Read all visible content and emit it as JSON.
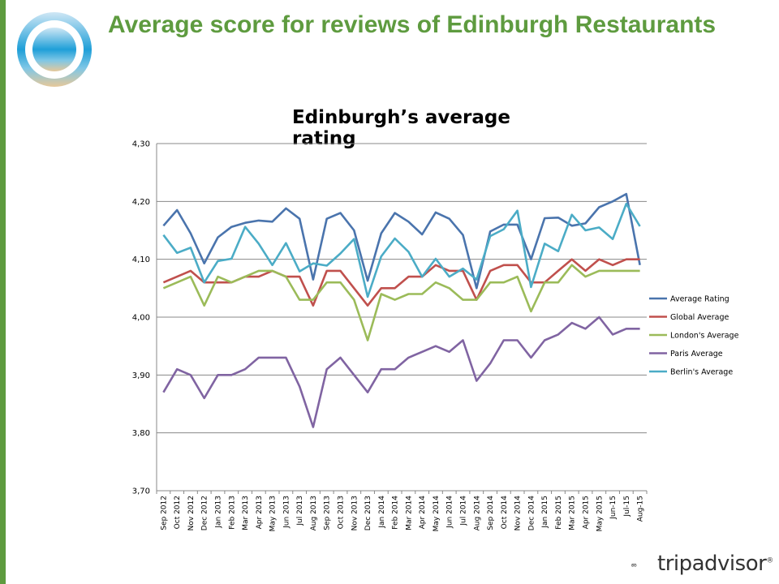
{
  "slide": {
    "title": "Average score for reviews of Edinburgh Restaurants",
    "brand_color": "#5e9b3f"
  },
  "logo": {
    "icon": "circular-brand-icon"
  },
  "footer": {
    "brand_text": "tripadvisor",
    "brand_mark": "®",
    "icon": "owl-eyes-icon"
  },
  "chart_data": {
    "type": "line",
    "title": "Edinburgh’s average rating",
    "xlabel": "",
    "ylabel": "",
    "ylim": [
      3.7,
      4.3
    ],
    "yticks": [
      "3,70",
      "3,80",
      "3,90",
      "4,00",
      "4,10",
      "4,20",
      "4,30"
    ],
    "grid": true,
    "legend_position": "right",
    "categories": [
      "Sep 2012",
      "Oct 2012",
      "Nov 2012",
      "Dec 2012",
      "Jan 2013",
      "Feb 2013",
      "Mar 2013",
      "Apr 2013",
      "May 2013",
      "Jun 2013",
      "Jul 2013",
      "Aug 2013",
      "Sep 2013",
      "Oct 2013",
      "Nov 2013",
      "Dec 2013",
      "Jan 2014",
      "Feb 2014",
      "Mar 2014",
      "Apr 2014",
      "May 2014",
      "Jun 2014",
      "Jul 2014",
      "Aug 2014",
      "Sep 2014",
      "Oct 2014",
      "Nov 2014",
      "Dec 2014",
      "Jan 2015",
      "Feb 2015",
      "Mar 2015",
      "Apr 2015",
      "May 2015",
      "Jun-15",
      "Jul-15",
      "Aug-15"
    ],
    "series": [
      {
        "name": "Average Rating",
        "color": "#4a74ad",
        "values": [
          4.158,
          4.185,
          4.145,
          4.093,
          4.138,
          4.156,
          4.163,
          4.167,
          4.165,
          4.188,
          4.17,
          4.065,
          4.17,
          4.18,
          4.15,
          4.063,
          4.145,
          4.18,
          4.165,
          4.143,
          4.181,
          4.17,
          4.142,
          4.05,
          4.148,
          4.16,
          4.16,
          4.1,
          4.171,
          4.172,
          4.158,
          4.162,
          4.19,
          4.2,
          4.213,
          4.09
        ]
      },
      {
        "name": "Global Average",
        "color": "#c0504d",
        "values": [
          4.06,
          4.07,
          4.08,
          4.06,
          4.06,
          4.06,
          4.07,
          4.07,
          4.08,
          4.07,
          4.07,
          4.02,
          4.08,
          4.08,
          4.05,
          4.02,
          4.05,
          4.05,
          4.07,
          4.07,
          4.09,
          4.08,
          4.08,
          4.03,
          4.08,
          4.09,
          4.09,
          4.06,
          4.06,
          4.08,
          4.1,
          4.08,
          4.1,
          4.09,
          4.1,
          4.1
        ]
      },
      {
        "name": "London's Average",
        "color": "#9bbb59",
        "values": [
          4.05,
          4.06,
          4.07,
          4.02,
          4.07,
          4.06,
          4.07,
          4.08,
          4.08,
          4.07,
          4.03,
          4.03,
          4.06,
          4.06,
          4.03,
          3.96,
          4.04,
          4.03,
          4.04,
          4.04,
          4.06,
          4.05,
          4.03,
          4.03,
          4.06,
          4.06,
          4.07,
          4.01,
          4.06,
          4.06,
          4.09,
          4.07,
          4.08,
          4.08,
          4.08,
          4.08
        ]
      },
      {
        "name": "Paris Average",
        "color": "#8064a2",
        "values": [
          3.87,
          3.91,
          3.9,
          3.86,
          3.9,
          3.9,
          3.91,
          3.93,
          3.93,
          3.93,
          3.88,
          3.81,
          3.91,
          3.93,
          3.9,
          3.87,
          3.91,
          3.91,
          3.93,
          3.94,
          3.95,
          3.94,
          3.96,
          3.89,
          3.92,
          3.96,
          3.96,
          3.93,
          3.96,
          3.97,
          3.99,
          3.98,
          4.0,
          3.97,
          3.98,
          3.98
        ]
      },
      {
        "name": "Berlin's Average",
        "color": "#4bacc6",
        "values": [
          4.142,
          4.111,
          4.12,
          4.06,
          4.097,
          4.101,
          4.156,
          4.127,
          4.09,
          4.128,
          4.079,
          4.093,
          4.089,
          4.11,
          4.135,
          4.035,
          4.105,
          4.136,
          4.113,
          4.07,
          4.101,
          4.07,
          4.084,
          4.065,
          4.14,
          4.152,
          4.184,
          4.052,
          4.127,
          4.114,
          4.177,
          4.15,
          4.155,
          4.135,
          4.196,
          4.157
        ]
      }
    ]
  }
}
